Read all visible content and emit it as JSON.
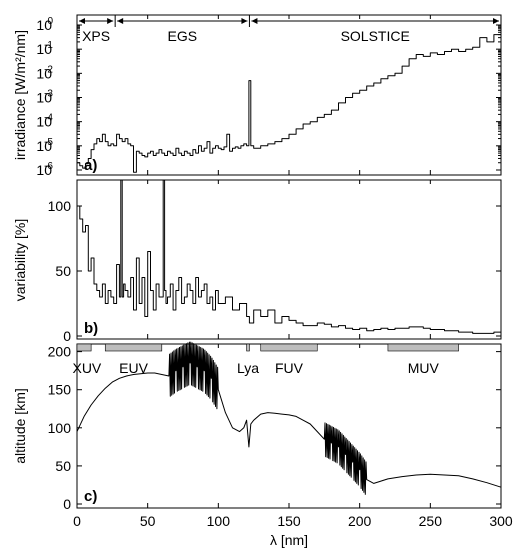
{
  "chart_data": [
    {
      "type": "line",
      "panel_label": "a)",
      "ylabel": "irradiance [W/m²/nm]",
      "yscale": "log",
      "xlim": [
        0,
        300
      ],
      "ylim": [
        1e-06,
        1
      ],
      "yticks": [
        {
          "value": 1e-06,
          "base": "10",
          "exp": "-6"
        },
        {
          "value": 1e-05,
          "base": "10",
          "exp": "-5"
        },
        {
          "value": 0.0001,
          "base": "10",
          "exp": "-4"
        },
        {
          "value": 0.001,
          "base": "10",
          "exp": "-3"
        },
        {
          "value": 0.01,
          "base": "10",
          "exp": "-2"
        },
        {
          "value": 0.1,
          "base": "10",
          "exp": "-1"
        },
        {
          "value": 1,
          "base": "10",
          "exp": "0"
        }
      ],
      "instruments": [
        {
          "label": "XPS",
          "x_start": 0,
          "x_end": 27
        },
        {
          "label": "EGS",
          "x_start": 27,
          "x_end": 122
        },
        {
          "label": "SOLSTICE",
          "x_start": 122,
          "x_end": 300
        }
      ],
      "series": [
        {
          "x": [
            0,
            2,
            4,
            6,
            8,
            10,
            12,
            14,
            16,
            18,
            20,
            22,
            24,
            26,
            28,
            30,
            32,
            34,
            36,
            38,
            40,
            42,
            44,
            46,
            48,
            50,
            52,
            54,
            56,
            58,
            60,
            62,
            64,
            66,
            68,
            70,
            72,
            74,
            76,
            78,
            80,
            82,
            84,
            86,
            88,
            90,
            92,
            94,
            96,
            98,
            100,
            102,
            104,
            106,
            108,
            110,
            112,
            114,
            116,
            118,
            120,
            121.6,
            123,
            125,
            130,
            135,
            140,
            145,
            150,
            155,
            160,
            165,
            170,
            175,
            180,
            185,
            190,
            195,
            200,
            205,
            210,
            215,
            220,
            225,
            230,
            235,
            240,
            245,
            250,
            255,
            260,
            265,
            270,
            275,
            280,
            285,
            290,
            295,
            300
          ],
          "y": [
            2e-06,
            1.5e-06,
            1.2e-06,
            1.8e-06,
            3e-06,
            7e-06,
            1.2e-05,
            2e-05,
            1.5e-05,
            3e-05,
            1.5e-05,
            1e-05,
            1.2e-05,
            1e-05,
            3e-05,
            2e-05,
            1.5e-05,
            2e-05,
            1.2e-05,
            1e-05,
            8e-07,
            6e-06,
            5e-06,
            4e-06,
            3.5e-06,
            5e-06,
            6e-06,
            4e-06,
            5e-06,
            7e-06,
            5e-06,
            4e-06,
            6e-06,
            5e-06,
            4e-06,
            8e-06,
            5e-06,
            4e-06,
            6e-06,
            5e-06,
            4e-06,
            7e-06,
            5e-06,
            1e-05,
            6e-06,
            8e-06,
            1.5e-05,
            5e-06,
            8e-06,
            1e-05,
            8e-06,
            7e-06,
            9e-06,
            3e-05,
            6e-06,
            8e-06,
            9e-06,
            8e-06,
            1e-05,
            1.2e-05,
            1e-05,
            0.005,
            1e-05,
            8e-06,
            1e-05,
            1.2e-05,
            1.5e-05,
            2e-05,
            3e-05,
            5e-05,
            8e-05,
            0.0001,
            0.00015,
            0.0002,
            0.0003,
            0.0006,
            0.001,
            0.0015,
            0.002,
            0.003,
            0.004,
            0.006,
            0.008,
            0.01,
            0.02,
            0.04,
            0.06,
            0.05,
            0.07,
            0.06,
            0.08,
            0.1,
            0.08,
            0.1,
            0.12,
            0.3,
            0.2,
            0.4,
            0.5
          ]
        }
      ]
    },
    {
      "type": "line",
      "panel_label": "b)",
      "ylabel": "variability [%]",
      "xlim": [
        0,
        300
      ],
      "ylim": [
        0,
        120
      ],
      "yticks": [
        0,
        50,
        100
      ],
      "series": [
        {
          "x": [
            0,
            2,
            4,
            6,
            8,
            10,
            12,
            14,
            16,
            18,
            20,
            22,
            24,
            26,
            28,
            30,
            31,
            32,
            33,
            34,
            36,
            38,
            40,
            42,
            44,
            46,
            48,
            50,
            52,
            54,
            56,
            58,
            60,
            61,
            62,
            63,
            64,
            66,
            68,
            70,
            72,
            74,
            76,
            78,
            80,
            82,
            84,
            86,
            88,
            90,
            92,
            94,
            96,
            98,
            100,
            105,
            110,
            115,
            120,
            122,
            125,
            130,
            135,
            140,
            145,
            150,
            155,
            160,
            165,
            170,
            175,
            180,
            185,
            190,
            195,
            200,
            205,
            210,
            215,
            220,
            225,
            230,
            235,
            240,
            245,
            250,
            255,
            260,
            265,
            270,
            275,
            280,
            285,
            290,
            295,
            300
          ],
          "y": [
            100,
            90,
            80,
            85,
            50,
            60,
            40,
            35,
            30,
            40,
            25,
            35,
            30,
            25,
            55,
            30,
            120,
            30,
            40,
            35,
            30,
            45,
            20,
            60,
            25,
            45,
            15,
            65,
            35,
            20,
            40,
            30,
            30,
            120,
            35,
            25,
            30,
            40,
            20,
            35,
            45,
            25,
            30,
            40,
            35,
            25,
            45,
            30,
            35,
            40,
            25,
            30,
            20,
            35,
            25,
            30,
            20,
            25,
            15,
            10,
            20,
            15,
            20,
            10,
            15,
            12,
            10,
            8,
            8,
            10,
            9,
            7,
            8,
            6,
            5,
            6,
            4,
            5,
            6,
            5,
            6,
            6,
            7,
            7,
            6,
            5,
            5,
            4,
            4,
            3,
            3,
            2,
            2,
            2,
            3,
            4
          ]
        }
      ]
    },
    {
      "type": "line",
      "panel_label": "c)",
      "ylabel": "altitude [km]",
      "xlabel": "λ [nm]",
      "xlim": [
        0,
        300
      ],
      "ylim": [
        0,
        210
      ],
      "xticks": [
        0,
        50,
        100,
        150,
        200,
        250,
        300
      ],
      "yticks": [
        0,
        50,
        100,
        150,
        200
      ],
      "bands": [
        {
          "label": "XUV",
          "x_start": 0,
          "x_end": 10
        },
        {
          "label": "EUV",
          "x_start": 20,
          "x_end": 60
        },
        {
          "label": "Lya",
          "x_start": 120,
          "x_end": 122
        },
        {
          "label": "FUV",
          "x_start": 130,
          "x_end": 170
        },
        {
          "label": "MUV",
          "x_start": 220,
          "x_end": 270
        }
      ],
      "series": [
        {
          "x": [
            0,
            5,
            10,
            15,
            20,
            25,
            30,
            35,
            40,
            45,
            50,
            55,
            60,
            65,
            70,
            75,
            80,
            85,
            90,
            95,
            100,
            105,
            110,
            115,
            118,
            120,
            121.6,
            123,
            125,
            130,
            135,
            140,
            145,
            150,
            155,
            160,
            165,
            170,
            175,
            180,
            185,
            190,
            195,
            200,
            205,
            210,
            215,
            220,
            230,
            240,
            250,
            260,
            270,
            280,
            290,
            300
          ],
          "y": [
            95,
            115,
            130,
            142,
            152,
            160,
            165,
            168,
            170,
            171,
            172,
            172,
            170,
            168,
            175,
            180,
            185,
            180,
            175,
            165,
            150,
            120,
            100,
            95,
            100,
            110,
            75,
            105,
            110,
            118,
            120,
            119,
            118,
            117,
            115,
            110,
            105,
            95,
            85,
            80,
            75,
            65,
            55,
            45,
            32,
            27,
            30,
            33,
            36,
            38,
            39,
            38,
            37,
            33,
            28,
            22
          ]
        }
      ]
    }
  ]
}
